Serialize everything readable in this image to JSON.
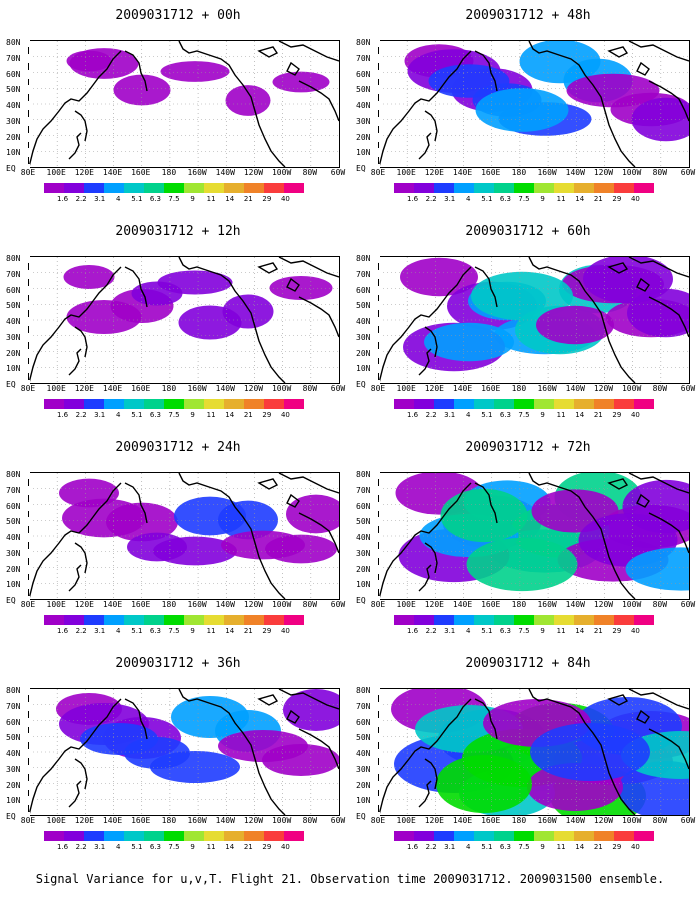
{
  "panels": [
    {
      "title": "2009031712 + 00h"
    },
    {
      "title": "2009031712 + 48h"
    },
    {
      "title": "2009031712 + 12h"
    },
    {
      "title": "2009031712 + 60h"
    },
    {
      "title": "2009031712 + 24h"
    },
    {
      "title": "2009031712 + 72h"
    },
    {
      "title": "2009031712 + 36h"
    },
    {
      "title": "2009031712 + 84h"
    }
  ],
  "x_axis_labels": [
    "80E",
    "100E",
    "120E",
    "140E",
    "160E",
    "180",
    "160W",
    "140W",
    "120W",
    "100W",
    "80W",
    "60W"
  ],
  "y_axis_labels": [
    "80N",
    "70N",
    "60N",
    "50N",
    "40N",
    "30N",
    "20N",
    "10N",
    "EQ"
  ],
  "colorbar": {
    "labels": [
      "1.6",
      "2.2",
      "3.1",
      "4",
      "5.1",
      "6.3",
      "7.5",
      "9",
      "11",
      "14",
      "21",
      "29",
      "40"
    ],
    "colors": [
      "#a000c8",
      "#8200dc",
      "#1e3cff",
      "#00a0ff",
      "#00c8c8",
      "#00d28c",
      "#00dc00",
      "#a0e632",
      "#e6dc32",
      "#e6af2d",
      "#f08228",
      "#fa3c3c",
      "#f00082"
    ]
  },
  "caption": "Signal Variance for u,v,T. Flight 21. Observation time 2009031712. 2009031500 ensemble."
}
